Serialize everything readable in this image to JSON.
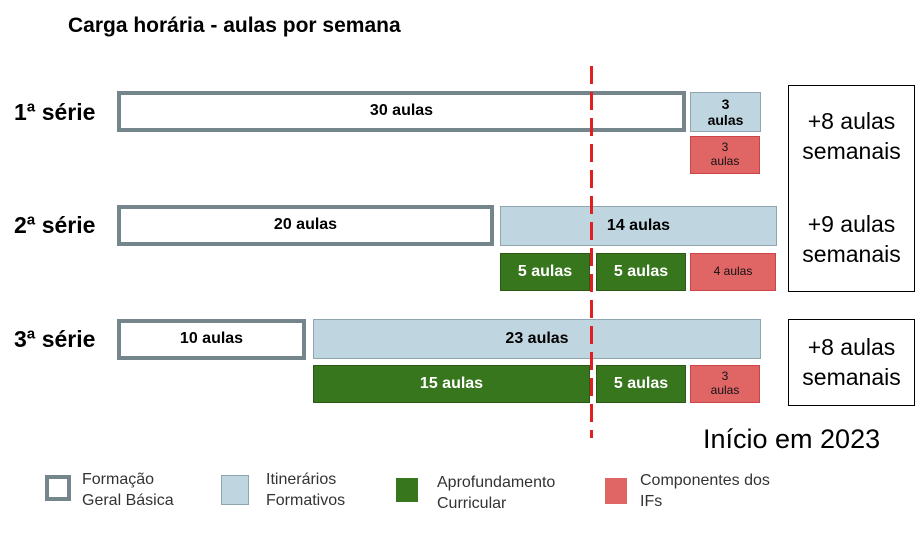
{
  "title": "Carga horária - aulas por semana",
  "rows": [
    {
      "label": "1ª série",
      "fgb": "30 aulas",
      "itf": [
        "3",
        "aulas"
      ],
      "cif": [
        "3",
        "aulas"
      ],
      "summary": [
        "+8 aulas",
        "semanais"
      ]
    },
    {
      "label": "2ª série",
      "fgb": "20 aulas",
      "itf": "14 aulas",
      "apr_a": "5 aulas",
      "apr_b": "5 aulas",
      "cif": "4  aulas",
      "summary": [
        "+9 aulas",
        "semanais"
      ]
    },
    {
      "label": "3ª série",
      "fgb": "10 aulas",
      "itf": "23 aulas",
      "apr_a": "15 aulas",
      "apr_b": "5 aulas",
      "cif": [
        "3",
        "aulas"
      ],
      "summary": [
        "+8 aulas",
        "semanais"
      ]
    }
  ],
  "start_note": "Início em 2023",
  "legend": [
    {
      "lines": [
        "Formação",
        "Geral Básica"
      ],
      "icon": "outlined-box"
    },
    {
      "lines": [
        "Itinerários",
        "Formativos"
      ],
      "icon": "light-blue-box"
    },
    {
      "lines": [
        "Aprofundamento",
        "Curricular"
      ],
      "icon": "green-box"
    },
    {
      "lines": [
        "Componentes dos",
        "IFs"
      ],
      "icon": "red-box"
    }
  ],
  "colors": {
    "fgb_border": "#74858c",
    "itinerarios": "#bfd6e1",
    "aprofundamento": "#38761d",
    "componentes": "#e06666",
    "divider": "#e02020"
  }
}
